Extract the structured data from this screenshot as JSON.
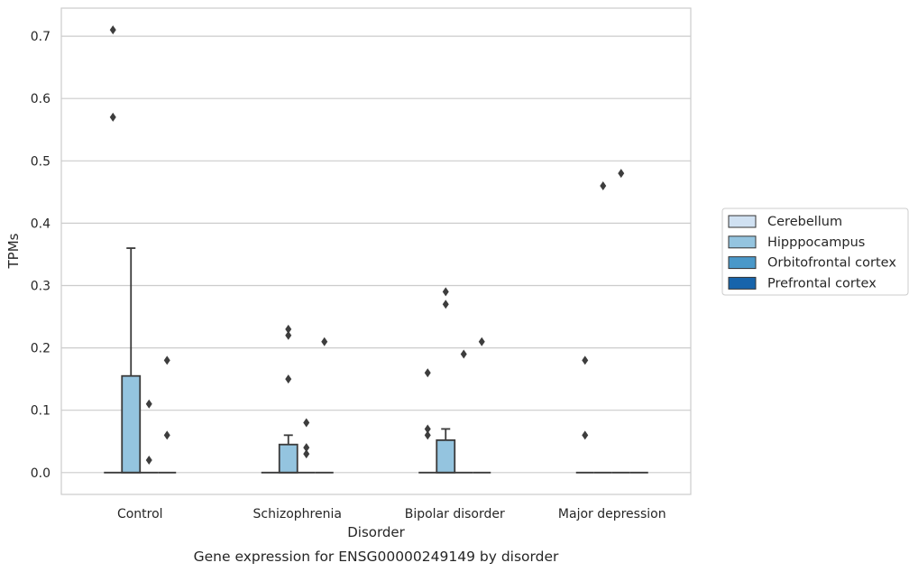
{
  "caption": "Gene expression for ENSG00000249149 by disorder",
  "chart_data": {
    "type": "box",
    "xlabel": "Disorder",
    "ylabel": "TPMs",
    "ylim": [
      -0.035,
      0.745
    ],
    "yticks": [
      0.0,
      0.1,
      0.2,
      0.3,
      0.4,
      0.5,
      0.6,
      0.7
    ],
    "ytick_labels": [
      "0.0",
      "0.1",
      "0.2",
      "0.3",
      "0.4",
      "0.5",
      "0.6",
      "0.7"
    ],
    "grid": "horizontal",
    "legend_position": "right",
    "categories": [
      "Control",
      "Schizophrenia",
      "Bipolar disorder",
      "Major depression"
    ],
    "series": [
      {
        "name": "Cerebellum",
        "color": "#d0e1f2"
      },
      {
        "name": "Hipppocampus",
        "color": "#94c4df"
      },
      {
        "name": "Orbitofrontal cortex",
        "color": "#4a98c9"
      },
      {
        "name": "Prefrontal cortex",
        "color": "#1764ab"
      }
    ],
    "boxes": [
      [
        {
          "series": 0,
          "q1": 0,
          "median": 0,
          "q3": 0,
          "whisker_low": 0,
          "whisker_high": 0,
          "outliers": [
            0.57,
            0.71
          ]
        },
        {
          "series": 1,
          "q1": 0,
          "median": 0,
          "q3": 0.155,
          "whisker_low": 0,
          "whisker_high": 0.36,
          "outliers": []
        },
        {
          "series": 2,
          "q1": 0,
          "median": 0,
          "q3": 0,
          "whisker_low": 0,
          "whisker_high": 0,
          "outliers": [
            0.02,
            0.11
          ]
        },
        {
          "series": 3,
          "q1": 0,
          "median": 0,
          "q3": 0,
          "whisker_low": 0,
          "whisker_high": 0,
          "outliers": [
            0.06,
            0.18
          ]
        }
      ],
      [
        {
          "series": 0,
          "q1": 0,
          "median": 0,
          "q3": 0,
          "whisker_low": 0,
          "whisker_high": 0,
          "outliers": []
        },
        {
          "series": 1,
          "q1": 0,
          "median": 0,
          "q3": 0.045,
          "whisker_low": 0,
          "whisker_high": 0.06,
          "outliers": [
            0.15,
            0.22,
            0.23
          ]
        },
        {
          "series": 2,
          "q1": 0,
          "median": 0,
          "q3": 0,
          "whisker_low": 0,
          "whisker_high": 0,
          "outliers": [
            0.03,
            0.04,
            0.08
          ]
        },
        {
          "series": 3,
          "q1": 0,
          "median": 0,
          "q3": 0,
          "whisker_low": 0,
          "whisker_high": 0,
          "outliers": [
            0.21
          ]
        }
      ],
      [
        {
          "series": 0,
          "q1": 0,
          "median": 0,
          "q3": 0,
          "whisker_low": 0,
          "whisker_high": 0,
          "outliers": [
            0.06,
            0.07,
            0.16
          ]
        },
        {
          "series": 1,
          "q1": 0,
          "median": 0,
          "q3": 0.052,
          "whisker_low": 0,
          "whisker_high": 0.07,
          "outliers": [
            0.27,
            0.29
          ]
        },
        {
          "series": 2,
          "q1": 0,
          "median": 0,
          "q3": 0,
          "whisker_low": 0,
          "whisker_high": 0,
          "outliers": [
            0.19
          ]
        },
        {
          "series": 3,
          "q1": 0,
          "median": 0,
          "q3": 0,
          "whisker_low": 0,
          "whisker_high": 0,
          "outliers": [
            0.21
          ]
        }
      ],
      [
        {
          "series": 0,
          "q1": 0,
          "median": 0,
          "q3": 0,
          "whisker_low": 0,
          "whisker_high": 0,
          "outliers": [
            0.06,
            0.18
          ]
        },
        {
          "series": 1,
          "q1": 0,
          "median": 0,
          "q3": 0,
          "whisker_low": 0,
          "whisker_high": 0,
          "outliers": [
            0.46
          ]
        },
        {
          "series": 2,
          "q1": 0,
          "median": 0,
          "q3": 0,
          "whisker_low": 0,
          "whisker_high": 0,
          "outliers": [
            0.48
          ]
        },
        {
          "series": 3,
          "q1": 0,
          "median": 0,
          "q3": 0,
          "whisker_low": 0,
          "whisker_high": 0,
          "outliers": []
        }
      ]
    ]
  }
}
